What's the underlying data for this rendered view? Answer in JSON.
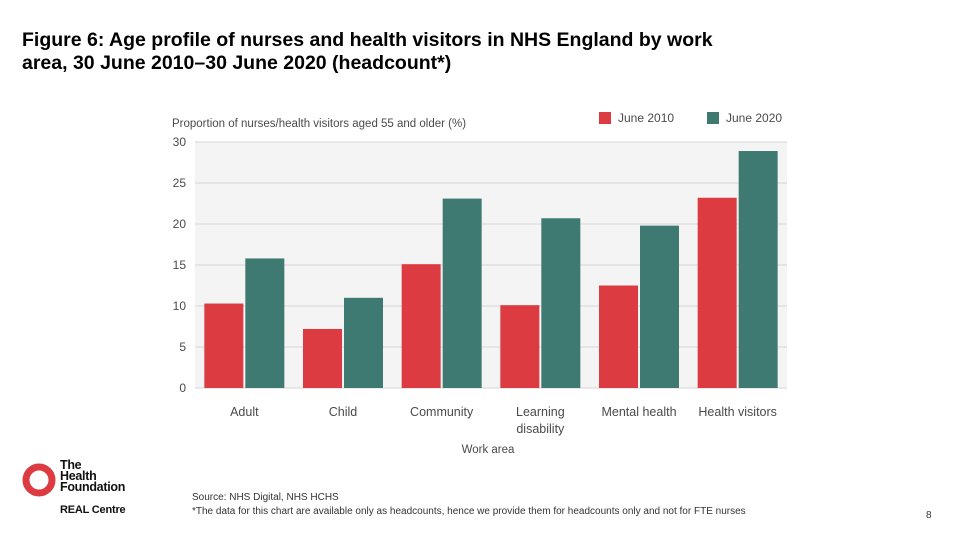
{
  "title_lines": [
    "Figure 6: Age profile of nurses and health visitors in NHS England by work",
    "area, 30 June 2010–30 June 2020 (headcount*)"
  ],
  "chart_data": {
    "type": "bar",
    "ylabel": "Proportion of nurses/health visitors aged 55 and older (%)",
    "xlabel": "Work area",
    "ylim": [
      0,
      30
    ],
    "yticks": [
      0,
      5,
      10,
      15,
      20,
      25,
      30
    ],
    "categories": [
      [
        "Adult"
      ],
      [
        "Child"
      ],
      [
        "Community"
      ],
      [
        "Learning",
        "disability"
      ],
      [
        "Mental health"
      ],
      [
        "Health visitors"
      ]
    ],
    "series": [
      {
        "name": "June 2010",
        "color": "#dc3c41",
        "values": [
          10.3,
          7.2,
          15.1,
          10.1,
          12.5,
          23.2
        ]
      },
      {
        "name": "June 2020",
        "color": "#3f7a72",
        "values": [
          15.8,
          11.0,
          23.1,
          20.7,
          19.8,
          28.9
        ]
      }
    ],
    "legend_position": "top-right",
    "grid": true
  },
  "logo": {
    "name_lines": [
      "The",
      "Health",
      "Foundation"
    ],
    "subtitle": "REAL Centre",
    "color": "#dc3c41"
  },
  "source_lines": [
    "Source: NHS Digital, NHS HCHS",
    "*The data for this chart are available only as headcounts, hence we provide them for headcounts only and not for FTE nurses"
  ],
  "page_number": "8"
}
